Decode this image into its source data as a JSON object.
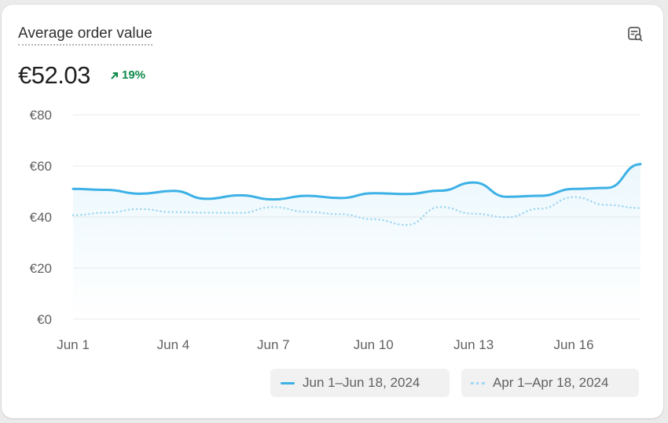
{
  "card": {
    "title": "Average order value",
    "value": "€52.03",
    "change": "19%",
    "change_direction": "up",
    "explore_icon": "search-report-icon"
  },
  "colors": {
    "current": "#3cb1e6",
    "previous": "#9fd7f2",
    "positive": "#0c8a4a"
  },
  "chart_data": {
    "type": "line",
    "title": "Average order value",
    "xlabel": "",
    "ylabel": "",
    "ylim": [
      0,
      80
    ],
    "yticks": [
      "€0",
      "€20",
      "€40",
      "€60",
      "€80"
    ],
    "ytick_values": [
      0,
      20,
      40,
      60,
      80
    ],
    "x": [
      "Jun 1",
      "Jun 2",
      "Jun 3",
      "Jun 4",
      "Jun 5",
      "Jun 6",
      "Jun 7",
      "Jun 8",
      "Jun 9",
      "Jun 10",
      "Jun 11",
      "Jun 12",
      "Jun 13",
      "Jun 14",
      "Jun 15",
      "Jun 16",
      "Jun 17",
      "Jun 18"
    ],
    "xticks": [
      "Jun 1",
      "Jun 4",
      "Jun 7",
      "Jun 10",
      "Jun 13",
      "Jun 16"
    ],
    "grid": true,
    "legend_position": "bottom-right",
    "series": [
      {
        "name": "Jun 1–Jun 18, 2024",
        "style": "solid",
        "values": [
          51.0,
          50.6,
          49.1,
          50.2,
          47.1,
          48.5,
          46.9,
          48.3,
          47.4,
          49.3,
          49.0,
          50.3,
          53.5,
          47.9,
          48.3,
          51.0,
          51.4,
          60.7
        ]
      },
      {
        "name": "Apr 1–Apr 18, 2024",
        "style": "dotted",
        "values": [
          40.7,
          41.7,
          43.1,
          41.9,
          41.7,
          41.6,
          43.9,
          42.0,
          41.1,
          39.1,
          36.9,
          43.9,
          41.3,
          39.9,
          43.3,
          47.8,
          44.7,
          43.5
        ]
      }
    ]
  }
}
